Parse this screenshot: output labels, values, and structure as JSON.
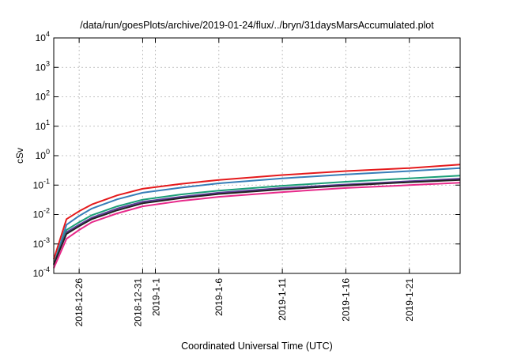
{
  "chart_data": {
    "type": "line",
    "title": "/data/run/goesPlots/archive/2019-01-24/flux/../bryn/31daysMarsAccumulated.plot",
    "xlabel": "Coordinated Universal Time (UTC)",
    "ylabel": "cSv",
    "yscale": "log",
    "ylim": [
      0.0001,
      10000
    ],
    "xlim": [
      "2018-12-24",
      "2019-01-25"
    ],
    "grid": true,
    "y_ticks": [
      {
        "value": 0.0001,
        "base": "10",
        "exp": "-4"
      },
      {
        "value": 0.001,
        "base": "10",
        "exp": "-3"
      },
      {
        "value": 0.01,
        "base": "10",
        "exp": "-2"
      },
      {
        "value": 0.1,
        "base": "10",
        "exp": "-1"
      },
      {
        "value": 1,
        "base": "10",
        "exp": "0"
      },
      {
        "value": 10,
        "base": "10",
        "exp": "1"
      },
      {
        "value": 100,
        "base": "10",
        "exp": "2"
      },
      {
        "value": 1000,
        "base": "10",
        "exp": "3"
      },
      {
        "value": 10000,
        "base": "10",
        "exp": "4"
      }
    ],
    "x_ticks": [
      {
        "date": "2018-12-26",
        "lines": [
          "2018-12-26"
        ]
      },
      {
        "date": "2018-12-31",
        "lines": [
          "2018-12-31"
        ]
      },
      {
        "date": "2019-01-01",
        "lines": [
          "2019-1-1"
        ]
      },
      {
        "date": "2019-01-06",
        "lines": [
          "2019-1-6"
        ]
      },
      {
        "date": "2019-01-11",
        "lines": [
          "2019-1-11"
        ]
      },
      {
        "date": "2019-01-16",
        "lines": [
          "2019-1-16"
        ]
      },
      {
        "date": "2019-01-21",
        "lines": [
          "2019-1-21"
        ]
      }
    ],
    "series": [
      {
        "color": "#e41a1c",
        "x": [
          "2018-12-24",
          "2018-12-25",
          "2018-12-26",
          "2018-12-27",
          "2018-12-29",
          "2018-12-31",
          "2019-01-03",
          "2019-01-06",
          "2019-01-11",
          "2019-01-16",
          "2019-01-21",
          "2019-01-25"
        ],
        "y": [
          0.0003,
          0.007,
          0.013,
          0.022,
          0.045,
          0.075,
          0.11,
          0.15,
          0.22,
          0.3,
          0.38,
          0.5
        ]
      },
      {
        "color": "#377eb8",
        "x": [
          "2018-12-24",
          "2018-12-25",
          "2018-12-26",
          "2018-12-27",
          "2018-12-29",
          "2018-12-31",
          "2019-01-03",
          "2019-01-06",
          "2019-01-11",
          "2019-01-16",
          "2019-01-21",
          "2019-01-25"
        ],
        "y": [
          0.0002,
          0.0045,
          0.009,
          0.016,
          0.033,
          0.055,
          0.082,
          0.115,
          0.17,
          0.23,
          0.3,
          0.38
        ]
      },
      {
        "color": "#1b9e77",
        "x": [
          "2018-12-24",
          "2018-12-25",
          "2018-12-26",
          "2018-12-27",
          "2018-12-29",
          "2018-12-31",
          "2019-01-03",
          "2019-01-06",
          "2019-01-11",
          "2019-01-16",
          "2019-01-21",
          "2019-01-25"
        ],
        "y": [
          0.0002,
          0.003,
          0.0055,
          0.0095,
          0.019,
          0.032,
          0.048,
          0.065,
          0.095,
          0.13,
          0.17,
          0.21
        ]
      },
      {
        "color": "#5e3c99",
        "x": [
          "2018-12-24",
          "2018-12-25",
          "2018-12-26",
          "2018-12-27",
          "2018-12-29",
          "2018-12-31",
          "2019-01-03",
          "2019-01-06",
          "2019-01-11",
          "2019-01-16",
          "2019-01-21",
          "2019-01-25"
        ],
        "y": [
          0.0002,
          0.0025,
          0.0045,
          0.0078,
          0.016,
          0.027,
          0.04,
          0.055,
          0.08,
          0.105,
          0.135,
          0.165
        ]
      },
      {
        "color": "#222222",
        "x": [
          "2018-12-24",
          "2018-12-25",
          "2018-12-26",
          "2018-12-27",
          "2018-12-29",
          "2018-12-31",
          "2019-01-03",
          "2019-01-06",
          "2019-01-11",
          "2019-01-16",
          "2019-01-21",
          "2019-01-25"
        ],
        "y": [
          0.0002,
          0.0022,
          0.004,
          0.007,
          0.014,
          0.024,
          0.036,
          0.05,
          0.072,
          0.097,
          0.125,
          0.15
        ]
      },
      {
        "color": "#e7298a",
        "x": [
          "2018-12-24",
          "2018-12-25",
          "2018-12-26",
          "2018-12-27",
          "2018-12-29",
          "2018-12-31",
          "2019-01-03",
          "2019-01-06",
          "2019-01-11",
          "2019-01-16",
          "2019-01-21",
          "2019-01-25"
        ],
        "y": [
          0.00015,
          0.0015,
          0.003,
          0.0055,
          0.011,
          0.019,
          0.029,
          0.04,
          0.058,
          0.08,
          0.1,
          0.12
        ]
      }
    ]
  }
}
